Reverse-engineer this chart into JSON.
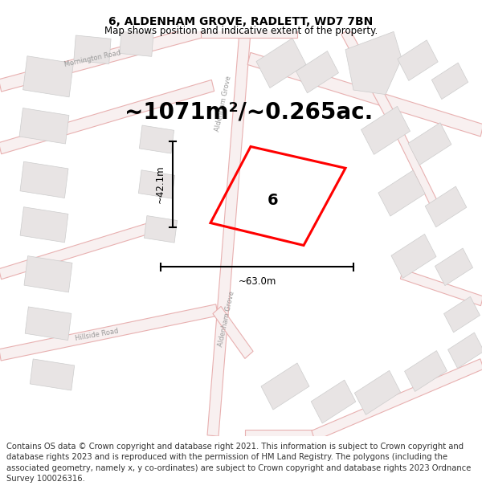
{
  "title": "6, ALDENHAM GROVE, RADLETT, WD7 7BN",
  "subtitle": "Map shows position and indicative extent of the property.",
  "area_text": "~1071m²/~0.265ac.",
  "property_number": "6",
  "dim_width": "~63.0m",
  "dim_height": "~42.1m",
  "footer_text": "Contains OS data © Crown copyright and database right 2021. This information is subject to Crown copyright and database rights 2023 and is reproduced with the permission of HM Land Registry. The polygons (including the associated geometry, namely x, y co-ordinates) are subject to Crown copyright and database rights 2023 Ordnance Survey 100026316.",
  "bg_color": "#ffffff",
  "map_bg": "#fafafa",
  "road_line_color": "#e8b0b0",
  "road_fill_color": "#f8f0f0",
  "building_fill": "#e8e4e4",
  "building_edge": "#cccccc",
  "property_color": "#ff0000",
  "text_color": "#000000",
  "dim_color": "#333333",
  "road_label_color": "#999999",
  "footer_color": "#333333",
  "title_fontsize": 10,
  "subtitle_fontsize": 8.5,
  "area_fontsize": 20,
  "footer_fontsize": 7.2,
  "property_lw": 2.2
}
